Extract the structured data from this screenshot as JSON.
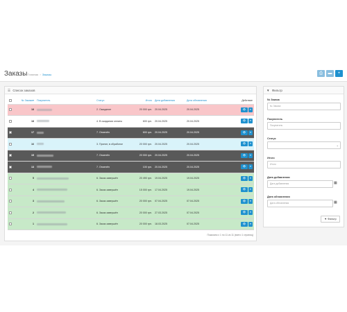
{
  "header": {
    "title": "Заказы",
    "breadcrumb": {
      "home": "Главная",
      "separator": "›",
      "current": "Заказы"
    },
    "buttons": [
      {
        "icon": "print-icon",
        "glyph": "⎙"
      },
      {
        "icon": "truck-icon",
        "glyph": "▬"
      },
      {
        "icon": "plus-icon",
        "glyph": "+"
      }
    ]
  },
  "orders_panel": {
    "heading": "Список заказов",
    "heading_glyph": "☰",
    "columns": {
      "order_id": "№ Заказа",
      "sort_glyph": "▾",
      "customer": "Покупатель",
      "status": "Статус",
      "total": "Итого",
      "date_added": "Дата добавления",
      "date_modified": "Дата обновления",
      "action": "Действие"
    },
    "rows": [
      {
        "id": "18",
        "style": "pink",
        "checkbox": true,
        "customer_blur": 22,
        "status": "2. Ожидание",
        "total": "20 000 грн.",
        "date_added": "20.04.2025",
        "date_modified": "20.04.2025"
      },
      {
        "id": "18",
        "style": "white",
        "checkbox": true,
        "customer_blur": 18,
        "status": "4. В ожидании оплаты",
        "total": "600 грн.",
        "date_added": "20.04.2025",
        "date_modified": "20.04.2025"
      },
      {
        "id": "17",
        "style": "dark",
        "checkbox": true,
        "customer_blur": 10,
        "status": "7. Отменён",
        "total": "600 грн.",
        "date_added": "20.04.2025",
        "date_modified": "20.04.2025"
      },
      {
        "id": "16",
        "style": "cyan",
        "checkbox": true,
        "customer_blur": 10,
        "status": "3. Принят, в обработке",
        "total": "20 000 грн.",
        "date_added": "20.04.2025",
        "date_modified": "20.04.2025"
      },
      {
        "id": "15",
        "style": "dark",
        "checkbox": true,
        "customer_blur": 24,
        "status": "7. Отменён",
        "total": "20 000 грн.",
        "date_added": "20.04.2025",
        "date_modified": "20.04.2025"
      },
      {
        "id": "13",
        "style": "dark",
        "checkbox": true,
        "customer_blur": 22,
        "status": "7. Отменён",
        "total": "100 грн.",
        "date_added": "20.04.2025",
        "date_modified": "20.04.2025"
      },
      {
        "id": "5",
        "style": "green",
        "checkbox": true,
        "customer_blur": 46,
        "status": "6. Заказ завершён",
        "total": "20 490 грн.",
        "date_added": "19.04.2025",
        "date_modified": "19.04.2025"
      },
      {
        "id": "4",
        "style": "green",
        "checkbox": true,
        "customer_blur": 44,
        "status": "6. Заказ завершён",
        "total": "15 000 грн.",
        "date_added": "17.04.2025",
        "date_modified": "19.04.2025"
      },
      {
        "id": "3",
        "style": "green",
        "checkbox": true,
        "customer_blur": 40,
        "status": "6. Заказ завершён",
        "total": "20 000 грн.",
        "date_added": "07.04.2025",
        "date_modified": "07.04.2025"
      },
      {
        "id": "2",
        "style": "green",
        "checkbox": true,
        "customer_blur": 42,
        "status": "6. Заказ завершён",
        "total": "20 000 грн.",
        "date_added": "27.03.2025",
        "date_modified": "07.04.2025"
      },
      {
        "id": "1",
        "style": "green",
        "checkbox": true,
        "customer_blur": 44,
        "status": "6. Заказ завершён",
        "total": "20 000 грн.",
        "date_added": "18.03.2025",
        "date_modified": "07.04.2025"
      }
    ],
    "action_view_glyph": "👁",
    "action_more_glyph": "▾",
    "pagination": "Показано с 1 по 11 из 11 (всего 1 страниц)"
  },
  "filter_panel": {
    "heading": "Фильтр",
    "heading_glyph": "▼",
    "fields": {
      "order_id": {
        "label": "№ Заказа",
        "placeholder": "№ Заказа"
      },
      "customer": {
        "label": "Покупатель",
        "placeholder": "Покупатель"
      },
      "status": {
        "label": "Статус",
        "value": ""
      },
      "total": {
        "label": "Итого",
        "placeholder": "Итого"
      },
      "date_added": {
        "label": "Дата добавления",
        "placeholder": "Дата добавления"
      },
      "date_modified": {
        "label": "Дата обновления",
        "placeholder": "Дата обновления"
      }
    },
    "select_caret": "⌄",
    "calendar_glyph": "▦",
    "button": {
      "glyph": "▼",
      "label": "Фильтр"
    }
  },
  "colors": {
    "accent": "#1e91cf",
    "row_pink": "#f9c6c9",
    "row_dark": "#595959",
    "row_cyan": "#d9f3fa",
    "row_green": "#c7e9c8"
  }
}
